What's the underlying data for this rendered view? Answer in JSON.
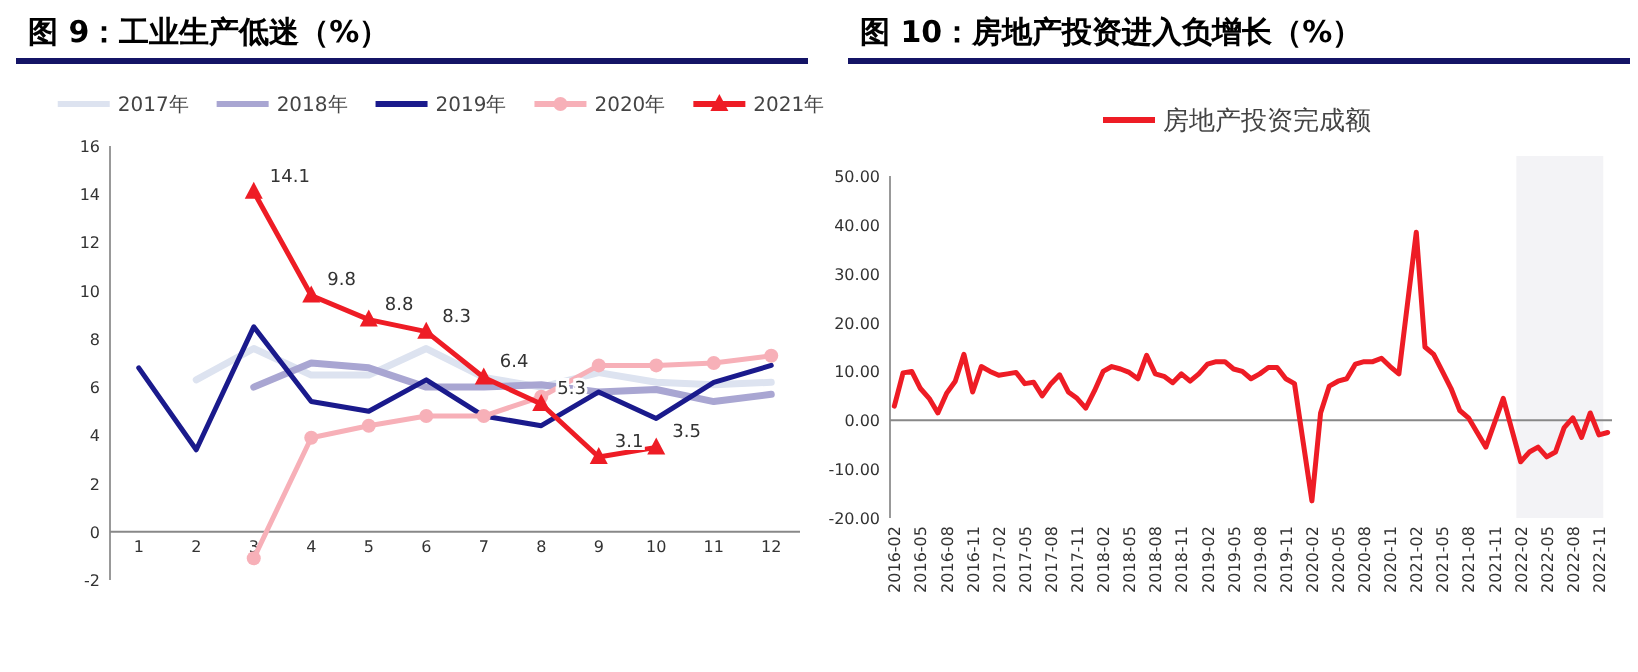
{
  "chart_data": [
    {
      "type": "line",
      "title": "图 9：工业生产低迷（%）",
      "categories": [
        "1",
        "2",
        "3",
        "4",
        "5",
        "6",
        "7",
        "8",
        "9",
        "10",
        "11",
        "12"
      ],
      "ylim": [
        -2,
        16
      ],
      "yticks": [
        -2,
        0,
        2,
        4,
        6,
        8,
        10,
        12,
        14,
        16
      ],
      "legend": "top",
      "series": [
        {
          "name": "2017年",
          "color": "#dde3f0",
          "marker": "none",
          "values": [
            null,
            6.3,
            7.6,
            6.5,
            6.5,
            7.6,
            6.4,
            6.0,
            6.6,
            6.2,
            6.1,
            6.2
          ]
        },
        {
          "name": "2018年",
          "color": "#a9a6d2",
          "marker": "none",
          "values": [
            null,
            null,
            6.0,
            7.0,
            6.8,
            6.0,
            6.0,
            6.1,
            5.8,
            5.9,
            5.4,
            5.7
          ]
        },
        {
          "name": "2019年",
          "color": "#1a1a8c",
          "marker": "none",
          "values": [
            6.8,
            3.4,
            8.5,
            5.4,
            5.0,
            6.3,
            4.8,
            4.4,
            5.8,
            4.7,
            6.2,
            6.9
          ]
        },
        {
          "name": "2020年",
          "color": "#f7b0b8",
          "marker": "circle",
          "values": [
            null,
            null,
            -1.1,
            3.9,
            4.4,
            4.8,
            4.8,
            5.6,
            6.9,
            6.9,
            7.0,
            7.3
          ]
        },
        {
          "name": "2021年",
          "color": "#ee1c25",
          "marker": "triangle",
          "values": [
            null,
            null,
            14.1,
            9.8,
            8.8,
            8.3,
            6.4,
            5.3,
            3.1,
            3.5,
            null,
            null
          ],
          "value_labels": [
            null,
            null,
            "14.1",
            "9.8",
            "8.8",
            "8.3",
            "6.4",
            "5.3",
            "3.1",
            "3.5",
            null,
            null
          ]
        }
      ]
    },
    {
      "type": "line",
      "title": "图 10：房地产投资进入负增长（%）",
      "categories": [
        "2016-02",
        null,
        null,
        "2016-05",
        null,
        null,
        "2016-08",
        null,
        null,
        "2016-11",
        null,
        null,
        "2017-02",
        null,
        null,
        "2017-05",
        null,
        null,
        "2017-08",
        null,
        null,
        "2017-11",
        null,
        null,
        "2018-02",
        null,
        null,
        "2018-05",
        null,
        null,
        "2018-08",
        null,
        null,
        "2018-11",
        null,
        null,
        "2019-02",
        null,
        null,
        "2019-05",
        null,
        null,
        "2019-08",
        null,
        null,
        "2019-11",
        null,
        null,
        "2020-02",
        null,
        null,
        "2020-05",
        null,
        null,
        "2020-08",
        null,
        null,
        "2020-11",
        null,
        null,
        "2021-02",
        null,
        null,
        "2021-05",
        null,
        null,
        "2021-08",
        null,
        null,
        "2021-11",
        null,
        null,
        "2022-02",
        null,
        null,
        "2022-05",
        null,
        null,
        "2022-08",
        null,
        null,
        "2022-11",
        null
      ],
      "ylim": [
        -20,
        50
      ],
      "yticks": [
        {
          "value": -20,
          "label": "-20.00"
        },
        {
          "value": -10,
          "label": "-10.00"
        },
        {
          "value": 0,
          "label": "0.00"
        },
        {
          "value": 10,
          "label": "10.00"
        },
        {
          "value": 20,
          "label": "20.00"
        },
        {
          "value": 30,
          "label": "30.00"
        },
        {
          "value": 40,
          "label": "40.00"
        },
        {
          "value": 50,
          "label": "50.00"
        }
      ],
      "legend": "top",
      "bands": [
        {
          "axis": "x",
          "from": "2022-02",
          "to": "2022-11",
          "color": "#f3f3f6"
        }
      ],
      "series": [
        {
          "name": "房地产投资完成额",
          "color": "#ee1c25",
          "values": [
            2.9,
            9.7,
            10.0,
            6.5,
            4.5,
            1.5,
            5.5,
            8,
            13.5,
            5.8,
            11,
            10,
            9.2,
            9.5,
            9.8,
            7.5,
            7.8,
            5.0,
            7.5,
            9.3,
            5.8,
            4.5,
            2.5,
            6,
            10,
            11,
            10.5,
            9.8,
            8.5,
            13.3,
            9.5,
            9.0,
            7.7,
            9.5,
            8,
            9.5,
            11.5,
            12,
            12,
            10.5,
            10,
            8.5,
            9.5,
            10.8,
            10.8,
            8.5,
            7.5,
            -4.5,
            -16.5,
            1.5,
            7.0,
            8,
            8.5,
            11.5,
            12,
            12,
            12.7,
            11,
            9.5,
            24,
            38.5,
            15,
            13.5,
            10,
            6.5,
            2,
            0.5,
            -2.5,
            -5.5,
            -0.5,
            4.5,
            -2,
            -8.5,
            -6.5,
            -5.5,
            -7.5,
            -6.5,
            -1.5,
            0.5,
            -3.5,
            1.5,
            -3,
            -2.5
          ]
        }
      ]
    }
  ]
}
